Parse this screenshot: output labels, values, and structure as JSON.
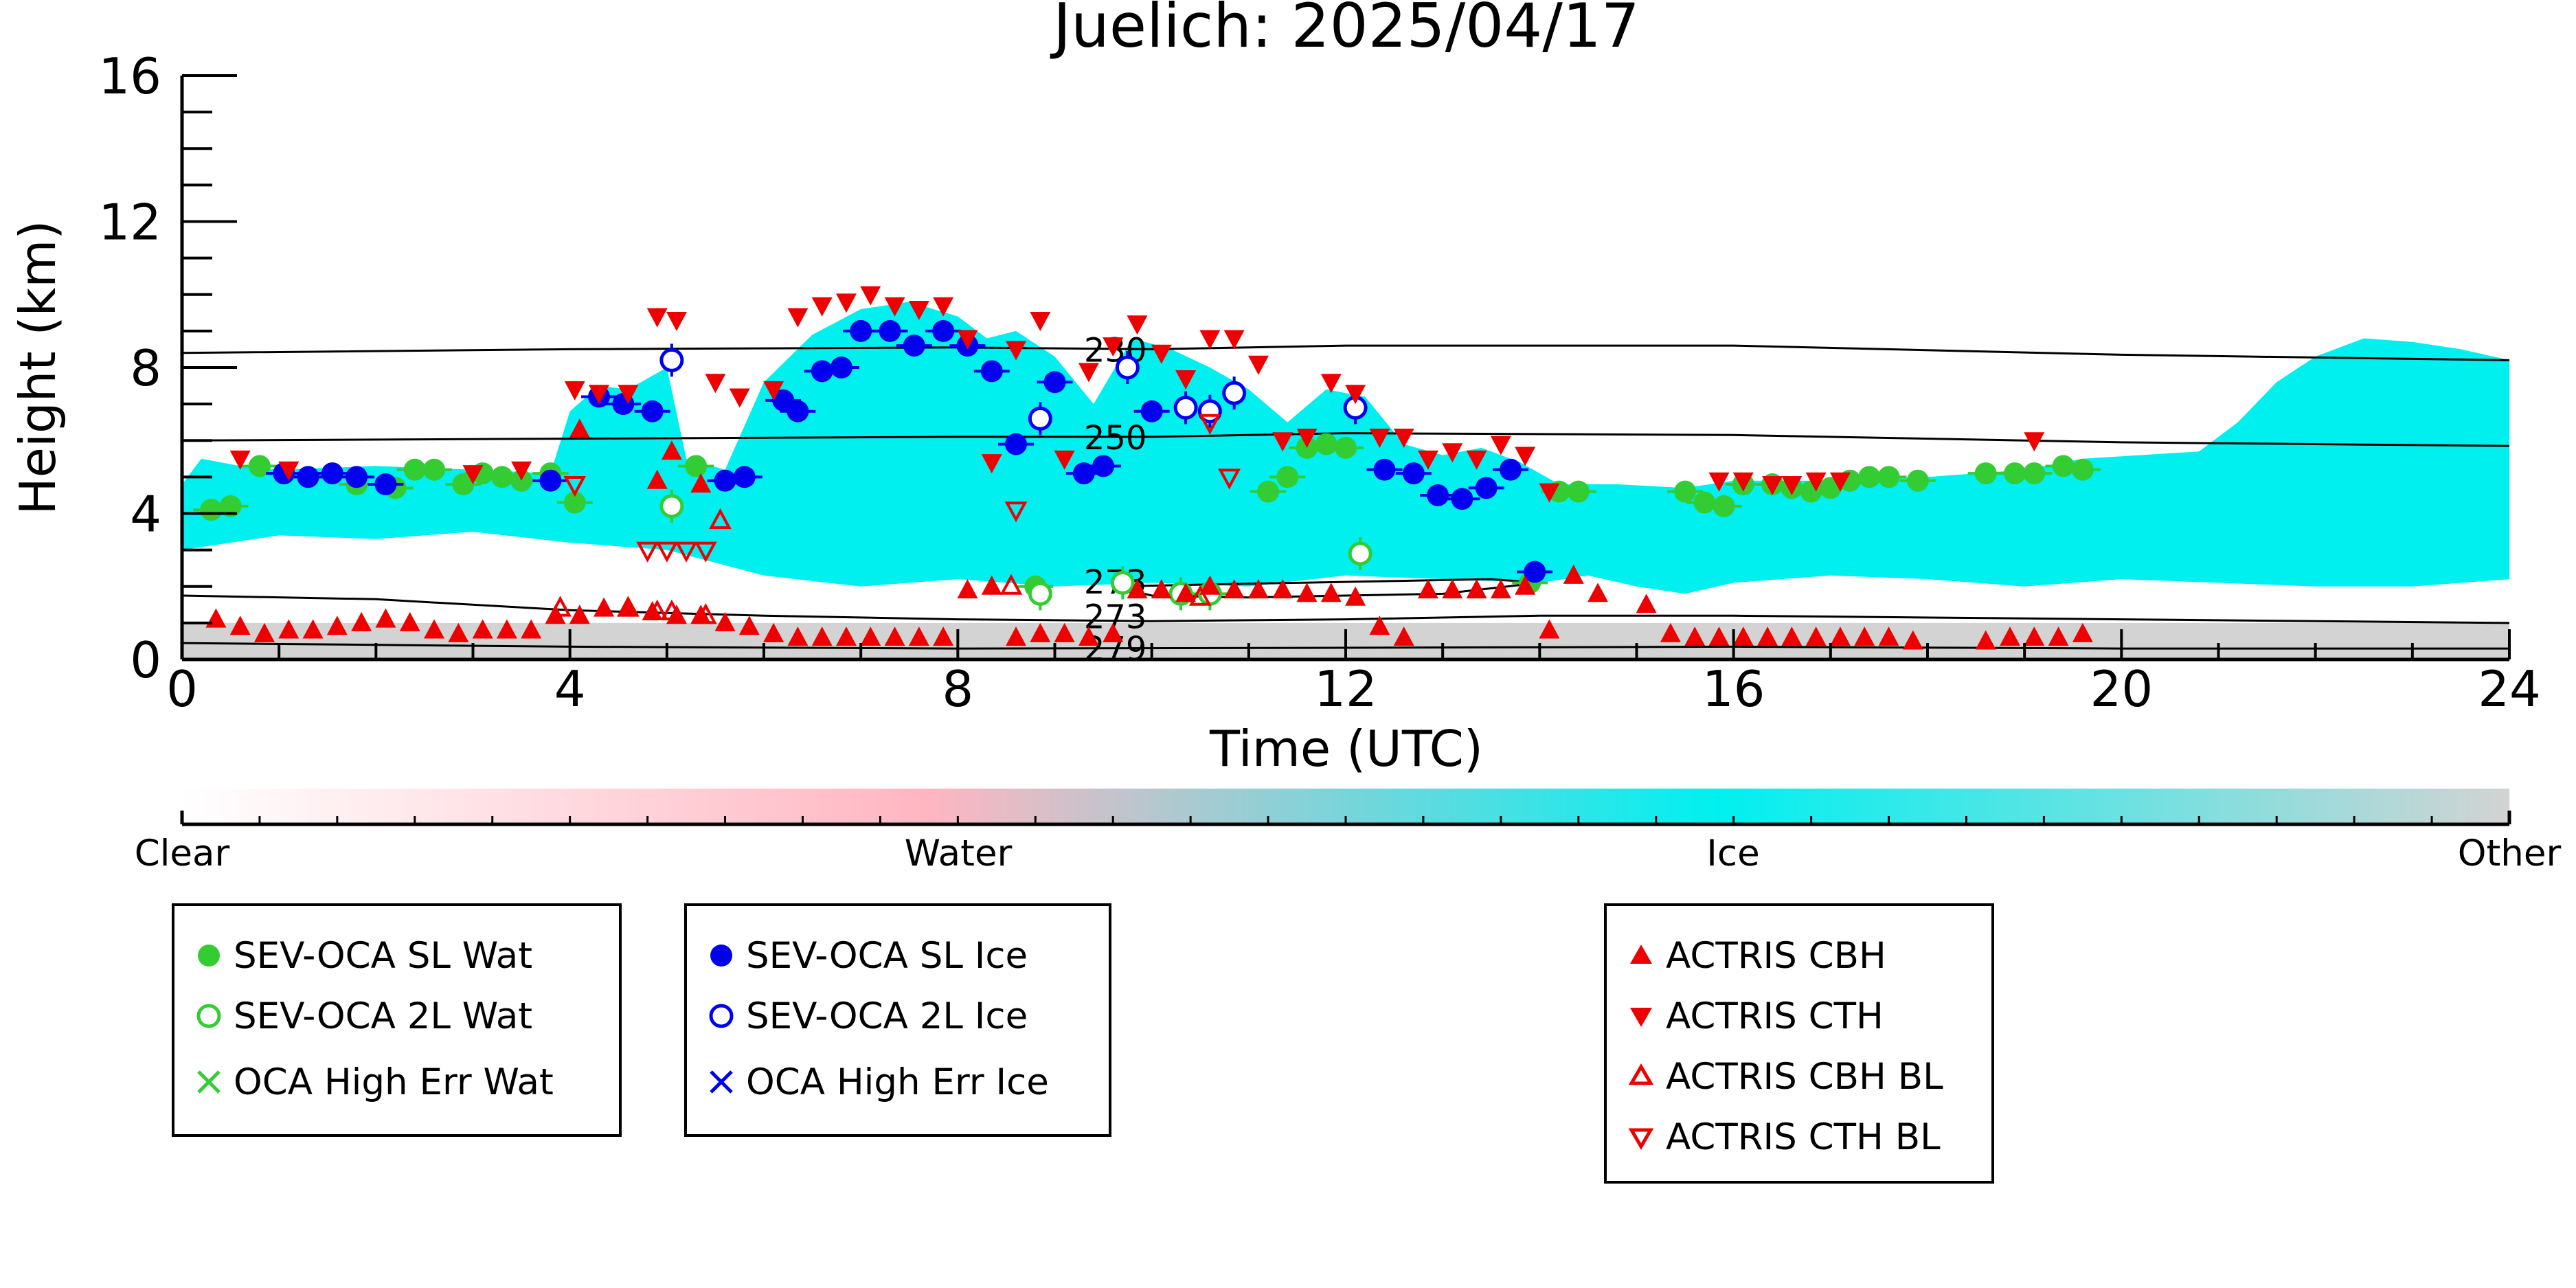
{
  "chart_data": {
    "type": "scatter",
    "title": "Juelich: 2025/04/17",
    "xlabel": "Time (UTC)",
    "ylabel": "Height (km)",
    "xlim": [
      0,
      24
    ],
    "ylim": [
      0,
      16
    ],
    "xticks": [
      "0",
      "4",
      "8",
      "12",
      "16",
      "20",
      "24"
    ],
    "yticks": [
      "0",
      "4",
      "8",
      "12",
      "16"
    ],
    "colorbar": {
      "labels": [
        "Clear",
        "Water",
        "Ice",
        "Other"
      ],
      "colors": [
        "#ffffff",
        "#ffb6c1",
        "#00f0f0",
        "#d3d3d3"
      ]
    },
    "isotherms": [
      {
        "label": "230",
        "x": [
          0,
          4,
          8,
          10,
          12,
          16,
          20,
          24
        ],
        "y": [
          8.4,
          8.5,
          8.55,
          8.5,
          8.6,
          8.6,
          8.35,
          8.2
        ]
      },
      {
        "label": "250",
        "x": [
          0,
          4,
          8,
          10,
          12,
          16,
          20,
          24
        ],
        "y": [
          6.0,
          6.05,
          6.1,
          6.1,
          6.2,
          6.15,
          5.95,
          5.85
        ]
      },
      {
        "label": "273",
        "x": [
          0,
          2,
          4,
          6,
          8,
          10,
          12,
          14,
          16,
          20,
          24
        ],
        "y": [
          1.75,
          1.65,
          1.35,
          1.2,
          1.1,
          1.05,
          1.1,
          1.2,
          1.2,
          1.1,
          1.0
        ]
      },
      {
        "label": "273",
        "x": [
          9.6,
          10.5,
          11.5,
          12.5,
          13.5,
          14.0,
          13.0,
          12.0,
          11.0,
          10.0,
          9.6
        ],
        "y": [
          2.0,
          2.05,
          2.1,
          2.15,
          2.2,
          2.1,
          1.8,
          1.75,
          1.7,
          1.75,
          2.0
        ]
      },
      {
        "label": "279",
        "x": [
          0,
          4,
          8,
          12,
          16,
          20,
          24
        ],
        "y": [
          0.45,
          0.35,
          0.3,
          0.32,
          0.35,
          0.3,
          0.3
        ]
      }
    ],
    "background": {
      "ice_cloud": {
        "x": [
          0,
          0.2,
          0.6,
          1.0,
          2.0,
          3.0,
          3.8,
          4.0,
          4.3,
          4.6,
          5.0,
          5.2,
          5.6,
          6.0,
          6.5,
          7.0,
          7.5,
          8.0,
          8.3,
          8.6,
          9.0,
          9.4,
          9.8,
          10.2,
          10.6,
          11.0,
          11.4,
          11.8,
          12.2,
          12.6,
          13.0,
          13.4,
          13.8,
          14.2,
          14.8,
          15.5,
          16.0,
          17.0,
          18.0,
          19.0,
          19.6,
          20.2,
          20.8,
          21.2,
          21.6,
          22.0,
          22.5,
          23.0,
          23.5,
          24,
          24,
          23.0,
          22.0,
          21.0,
          20.0,
          19.0,
          18.0,
          17.0,
          16.0,
          15.5,
          15.0,
          14.5,
          14.0,
          13.0,
          12.0,
          11.0,
          10.0,
          9.0,
          8.0,
          7.0,
          6.0,
          5.0,
          4.0,
          3.0,
          2.0,
          1.0,
          0
        ],
        "y": [
          4.8,
          5.5,
          5.3,
          5.2,
          5.3,
          5.2,
          5.1,
          6.8,
          7.5,
          7.4,
          8.0,
          5.5,
          5.2,
          7.6,
          8.9,
          9.6,
          9.8,
          9.4,
          8.8,
          9.0,
          8.3,
          7.0,
          8.8,
          8.5,
          8.0,
          7.4,
          6.5,
          7.4,
          7.2,
          5.9,
          5.6,
          5.8,
          5.4,
          4.8,
          4.8,
          4.7,
          4.9,
          4.9,
          5.0,
          5.2,
          5.5,
          5.6,
          5.7,
          6.5,
          7.6,
          8.3,
          8.8,
          8.7,
          8.5,
          8.2,
          2.2,
          2.0,
          2.0,
          2.1,
          2.2,
          2.0,
          2.2,
          2.3,
          2.1,
          1.8,
          2.0,
          2.3,
          2.1,
          2.2,
          2.3,
          2.0,
          2.1,
          2.0,
          2.2,
          2.0,
          2.3,
          3.0,
          3.2,
          3.5,
          3.3,
          3.4,
          3.0
        ]
      },
      "other_layer_top_km": 1.0
    },
    "series": [
      {
        "name": "SEV-OCA SL Wat",
        "color": "#33cc33",
        "marker": "filled-circle",
        "x": [
          0.3,
          0.5,
          0.8,
          1.3,
          1.8,
          2.2,
          2.4,
          2.6,
          2.9,
          3.1,
          3.3,
          3.5,
          3.8,
          4.05,
          5.3,
          8.8,
          10.6,
          11.2,
          11.4,
          11.6,
          11.8,
          12.0,
          13.9,
          14.2,
          14.4,
          15.5,
          15.7,
          15.9,
          16.1,
          16.4,
          16.6,
          16.8,
          17.0,
          17.2,
          17.4,
          17.6,
          17.9,
          18.6,
          18.9,
          19.1,
          19.4,
          19.6
        ],
        "y": [
          4.1,
          4.2,
          5.3,
          5.0,
          4.8,
          4.7,
          5.2,
          5.2,
          4.8,
          5.1,
          5.0,
          4.9,
          5.1,
          4.3,
          5.3,
          2.0,
          1.8,
          4.6,
          5.0,
          5.8,
          5.9,
          5.8,
          2.1,
          4.6,
          4.6,
          4.6,
          4.3,
          4.2,
          4.8,
          4.8,
          4.7,
          4.6,
          4.7,
          4.9,
          5.0,
          5.0,
          4.9,
          5.1,
          5.1,
          5.1,
          5.3,
          5.2
        ]
      },
      {
        "name": "SEV-OCA 2L Wat",
        "color": "#33cc33",
        "marker": "open-circle",
        "x": [
          5.05,
          8.85,
          9.7,
          10.3,
          10.6,
          12.15
        ],
        "y": [
          4.2,
          1.8,
          2.1,
          1.8,
          1.8,
          2.9
        ]
      },
      {
        "name": "OCA High Err Wat",
        "color": "#33cc33",
        "marker": "x",
        "x": [],
        "y": []
      },
      {
        "name": "SEV-OCA SL Ice",
        "color": "#0000ee",
        "marker": "filled-circle",
        "x": [
          1.05,
          1.3,
          1.55,
          1.8,
          2.1,
          3.8,
          4.3,
          4.55,
          4.85,
          5.6,
          5.8,
          6.2,
          6.35,
          6.6,
          6.8,
          7.0,
          7.3,
          7.55,
          7.85,
          8.1,
          8.35,
          8.6,
          9.0,
          9.3,
          9.5,
          10.0,
          12.4,
          12.7,
          12.95,
          13.2,
          13.45,
          13.7,
          13.95
        ],
        "y": [
          5.1,
          5.0,
          5.1,
          5.0,
          4.8,
          4.9,
          7.2,
          7.0,
          6.8,
          4.9,
          5.0,
          7.1,
          6.8,
          7.9,
          8.0,
          9.0,
          9.0,
          8.6,
          9.0,
          8.6,
          7.9,
          5.9,
          7.6,
          5.1,
          5.3,
          6.8,
          5.2,
          5.1,
          4.5,
          4.4,
          4.7,
          5.2,
          2.4
        ]
      },
      {
        "name": "SEV-OCA 2L Ice",
        "color": "#0000ee",
        "marker": "open-circle",
        "x": [
          5.05,
          8.85,
          9.75,
          10.35,
          10.6,
          10.85,
          12.1
        ],
        "y": [
          8.2,
          6.6,
          8.0,
          6.9,
          6.8,
          7.3,
          6.9
        ]
      },
      {
        "name": "OCA High Err Ice",
        "color": "#0000ee",
        "marker": "x",
        "x": [],
        "y": []
      },
      {
        "name": "ACTRIS CBH",
        "color": "#ee0000",
        "marker": "triangle-up",
        "x": [
          0.35,
          0.6,
          0.85,
          1.1,
          1.35,
          1.6,
          1.85,
          2.1,
          2.35,
          2.6,
          2.85,
          3.1,
          3.35,
          3.6,
          3.85,
          4.1,
          4.35,
          4.6,
          4.85,
          5.1,
          5.35,
          5.6,
          5.85,
          6.1,
          6.35,
          6.6,
          6.85,
          7.1,
          7.35,
          7.6,
          7.85,
          8.1,
          8.35,
          8.6,
          8.85,
          9.1,
          9.35,
          9.6,
          9.85,
          10.1,
          10.35,
          10.6,
          10.85,
          11.1,
          11.35,
          11.6,
          11.85,
          12.1,
          12.35,
          12.6,
          12.85,
          13.1,
          13.35,
          13.6,
          13.85,
          14.1,
          14.35,
          14.6,
          15.1,
          15.35,
          15.6,
          15.85,
          16.1,
          16.35,
          16.6,
          16.85,
          17.1,
          17.35,
          17.6,
          17.85,
          18.6,
          18.85,
          19.1,
          19.35,
          19.6,
          4.1,
          4.9,
          5.05,
          5.35
        ],
        "y": [
          1.1,
          0.9,
          0.7,
          0.8,
          0.8,
          0.9,
          1.0,
          1.1,
          1.0,
          0.8,
          0.7,
          0.8,
          0.8,
          0.8,
          1.2,
          1.2,
          1.4,
          1.4,
          1.3,
          1.2,
          1.2,
          1.0,
          0.9,
          0.7,
          0.6,
          0.6,
          0.6,
          0.6,
          0.6,
          0.6,
          0.6,
          1.9,
          2.0,
          0.6,
          0.7,
          0.7,
          0.6,
          0.7,
          1.9,
          1.9,
          1.8,
          2.0,
          1.9,
          1.9,
          1.9,
          1.8,
          1.8,
          1.7,
          0.9,
          0.6,
          1.9,
          1.9,
          1.9,
          1.9,
          2.0,
          0.8,
          2.3,
          1.8,
          1.5,
          0.7,
          0.6,
          0.6,
          0.6,
          0.6,
          0.6,
          0.6,
          0.6,
          0.6,
          0.6,
          0.5,
          0.5,
          0.6,
          0.6,
          0.6,
          0.7,
          6.3,
          4.9,
          5.7,
          4.8
        ]
      },
      {
        "name": "ACTRIS CTH",
        "color": "#ee0000",
        "marker": "triangle-down",
        "x": [
          0.6,
          1.1,
          3.0,
          3.5,
          4.05,
          4.3,
          4.6,
          4.9,
          5.1,
          5.5,
          5.75,
          6.1,
          6.35,
          6.6,
          6.85,
          7.1,
          7.35,
          7.6,
          7.85,
          8.1,
          8.35,
          8.6,
          8.85,
          9.1,
          9.35,
          9.6,
          9.85,
          10.1,
          10.35,
          10.6,
          10.85,
          11.1,
          11.35,
          11.6,
          11.85,
          12.1,
          12.35,
          12.6,
          12.85,
          13.1,
          13.35,
          13.6,
          13.85,
          14.1,
          15.85,
          16.1,
          16.4,
          16.6,
          16.85,
          17.1,
          19.1
        ],
        "y": [
          5.5,
          5.2,
          5.1,
          5.2,
          7.4,
          7.3,
          7.3,
          9.4,
          9.3,
          7.6,
          7.2,
          7.4,
          9.4,
          9.7,
          9.8,
          10.0,
          9.7,
          9.6,
          9.7,
          8.8,
          5.4,
          8.5,
          9.3,
          5.5,
          7.9,
          8.6,
          9.2,
          8.4,
          7.7,
          8.8,
          8.8,
          8.1,
          6.0,
          6.1,
          7.6,
          7.3,
          6.1,
          6.1,
          5.5,
          5.7,
          5.5,
          5.9,
          5.6,
          4.6,
          4.9,
          4.9,
          4.8,
          4.8,
          4.9,
          4.9,
          6.0
        ]
      },
      {
        "name": "ACTRIS CBH BL",
        "color": "#ee0000",
        "marker": "open-triangle-up",
        "x": [
          3.9,
          4.6,
          4.9,
          5.05,
          5.4,
          5.55,
          8.55,
          10.5
        ],
        "y": [
          1.4,
          1.4,
          1.3,
          1.3,
          1.2,
          3.8,
          2.0,
          1.7
        ]
      },
      {
        "name": "ACTRIS CTH BL",
        "color": "#ee0000",
        "marker": "open-triangle-down",
        "x": [
          4.05,
          4.8,
          5.0,
          5.2,
          5.4,
          8.6,
          10.6,
          10.8
        ],
        "y": [
          4.8,
          3.0,
          3.0,
          3.0,
          3.0,
          4.1,
          6.5,
          5.0
        ]
      }
    ]
  },
  "legends": [
    {
      "items": [
        "SEV-OCA SL Wat",
        "SEV-OCA 2L Wat",
        "OCA High Err Wat"
      ],
      "markers": [
        "filled-circle",
        "open-circle",
        "x"
      ],
      "color": "#33cc33"
    },
    {
      "items": [
        "SEV-OCA SL Ice",
        "SEV-OCA 2L Ice",
        "OCA High Err Ice"
      ],
      "markers": [
        "filled-circle",
        "open-circle",
        "x"
      ],
      "color": "#0000ee"
    },
    {
      "items": [
        "ACTRIS CBH",
        "ACTRIS CTH",
        "ACTRIS CBH BL",
        "ACTRIS CTH BL"
      ],
      "markers": [
        "triangle-up",
        "triangle-down",
        "open-triangle-up",
        "open-triangle-down"
      ],
      "color": "#ee0000"
    }
  ]
}
